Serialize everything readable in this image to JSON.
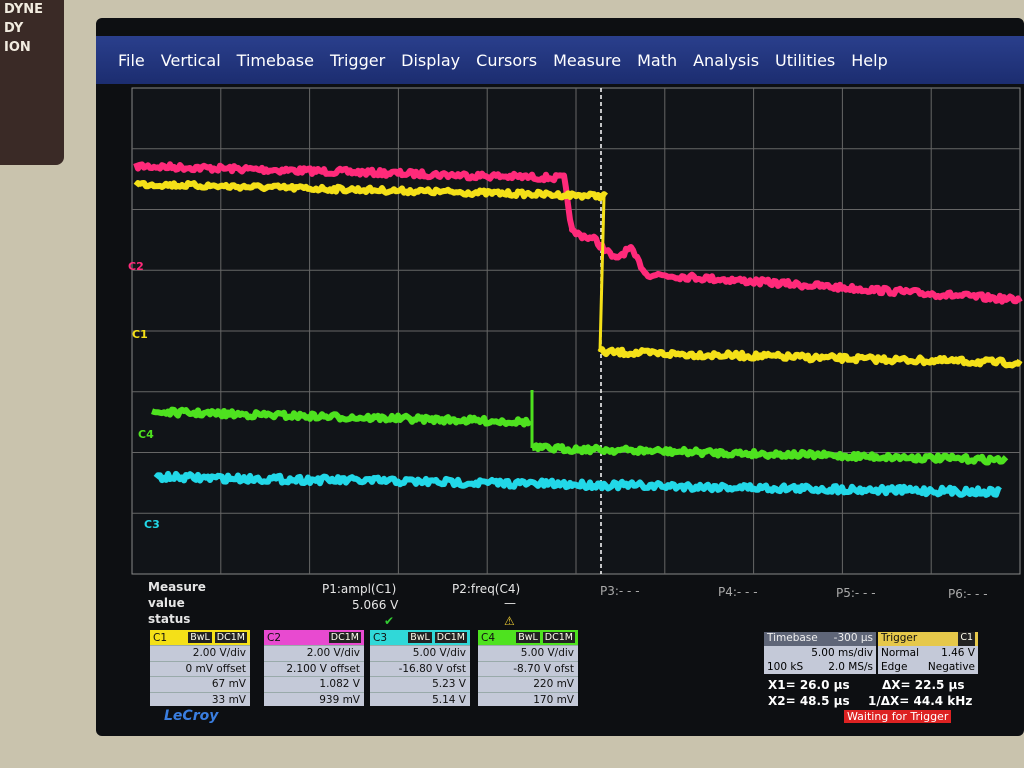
{
  "sticker": [
    "DYNE",
    "DY",
    "ION"
  ],
  "menu": [
    "File",
    "Vertical",
    "Timebase",
    "Trigger",
    "Display",
    "Cursors",
    "Measure",
    "Math",
    "Analysis",
    "Utilities",
    "Help"
  ],
  "channel_markers": [
    "C2",
    "C1",
    "C4",
    "C3"
  ],
  "measure": {
    "labels": [
      "Measure",
      "value",
      "status"
    ],
    "params": [
      {
        "name": "P1:ampl(C1)",
        "value": "5.066 V"
      },
      {
        "name": "P2:freq(C4)",
        "value": "—"
      }
    ],
    "empty": [
      "P3:- - -",
      "P4:- - -",
      "P5:- - -",
      "P6:- - -"
    ]
  },
  "channels": [
    {
      "name": "C1",
      "tags": [
        "BwL",
        "DC1M"
      ],
      "scale": "2.00 V/div",
      "offset": "0 mV offset",
      "max": "67 mV",
      "min": "33 mV"
    },
    {
      "name": "C2",
      "tags": [
        "DC1M"
      ],
      "scale": "2.00 V/div",
      "offset": "2.100 V offset",
      "max": "1.082 V",
      "min": "939 mV"
    },
    {
      "name": "C3",
      "tags": [
        "BwL",
        "DC1M"
      ],
      "scale": "5.00 V/div",
      "offset": "-16.80 V ofst",
      "max": "5.23 V",
      "min": "5.14 V"
    },
    {
      "name": "C4",
      "tags": [
        "BwL",
        "DC1M"
      ],
      "scale": "5.00 V/div",
      "offset": "-8.70 V ofst",
      "max": "220 mV",
      "min": "170 mV"
    }
  ],
  "timebase": {
    "title": "Timebase",
    "delay": "-300 µs",
    "scale": "5.00 ms/div",
    "samples": "100 kS",
    "rate": "2.0 MS/s"
  },
  "trigger": {
    "title": "Trigger",
    "source": "C1",
    "mode": "Normal",
    "level": "1.46 V",
    "type": "Edge",
    "slope": "Negative"
  },
  "cursors": [
    "X1= 26.0 µs",
    "ΔX= 22.5 µs",
    "X2= 48.5 µs",
    "1/ΔX= 44.4 kHz"
  ],
  "status": "Waiting for Trigger",
  "brand": "LeCroy"
}
